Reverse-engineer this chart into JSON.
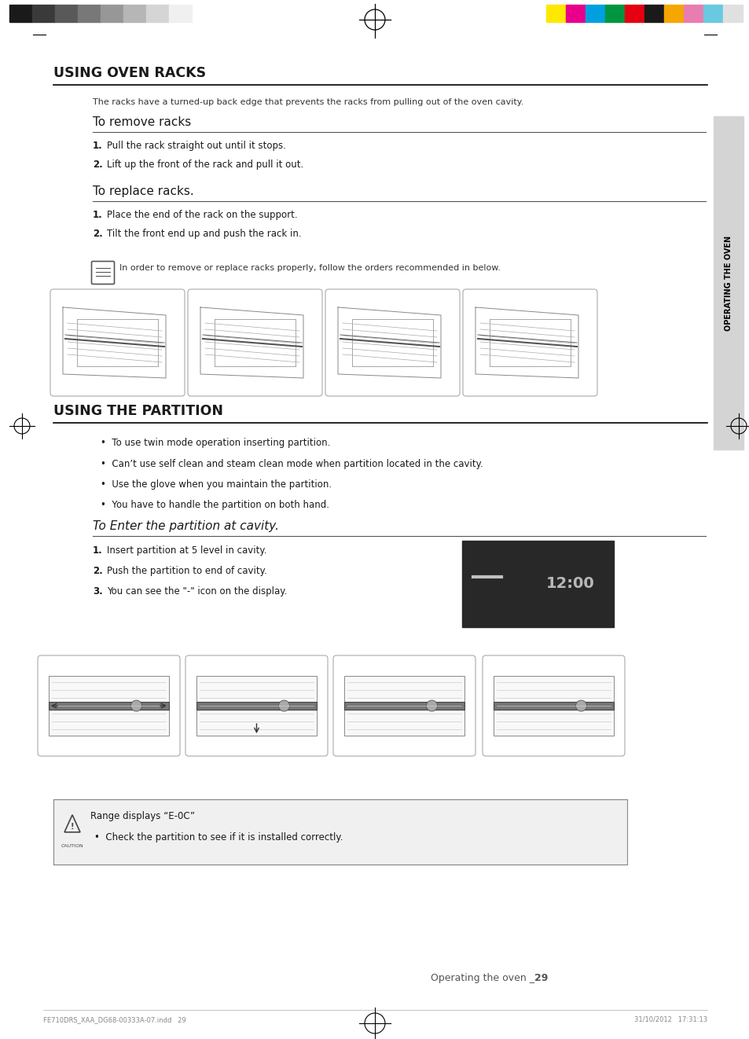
{
  "bg_color": "#ffffff",
  "sidebar_color": "#d4d4d4",
  "sidebar_text": "OPERATING THE OVEN",
  "section1_title": "USING OVEN RACKS",
  "section1_intro": "The racks have a turned-up back edge that prevents the racks from pulling out of the oven cavity.",
  "subsection1_title": "To remove racks",
  "remove_steps": [
    "Pull the rack straight out until it stops.",
    "Lift up the front of the rack and pull it out."
  ],
  "subsection2_title": "To replace racks.",
  "replace_steps": [
    "Place the end of the rack on the support.",
    "Tilt the front end up and push the rack in."
  ],
  "note_text": "In order to remove or replace racks properly, follow the orders recommended in below.",
  "section2_title": "USING THE PARTITION",
  "partition_bullets": [
    "To use twin mode operation inserting partition.",
    "Can’t use self clean and steam clean mode when partition located in the cavity.",
    "Use the glove when you maintain the partition.",
    "You have to handle the partition on both hand."
  ],
  "subsection3_title": "To Enter the partition at cavity.",
  "partition_steps": [
    "Insert partition at 5 level in cavity.",
    "Push the partition to end of cavity.",
    "You can see the \"-\" icon on the display."
  ],
  "caution_title": "Range displays “E-0C”",
  "caution_bullet": "Check the partition to see if it is installed correctly.",
  "footer_left": "FE710DRS_XAA_DG68-00333A-07.indd   29",
  "footer_center": "Operating the oven _",
  "footer_center_bold": "29",
  "footer_right": "31/10/2012   17:31:13",
  "colors_left": [
    "#1a1a1a",
    "#3a3a3a",
    "#595959",
    "#787878",
    "#979797",
    "#b6b6b6",
    "#d5d5d5",
    "#f0f0f0"
  ],
  "colors_right": [
    "#ffe800",
    "#e8008c",
    "#00a0e0",
    "#009640",
    "#e50012",
    "#1a1a1a",
    "#f6a600",
    "#e87db0",
    "#6ac9e0",
    "#e0e0e0"
  ]
}
